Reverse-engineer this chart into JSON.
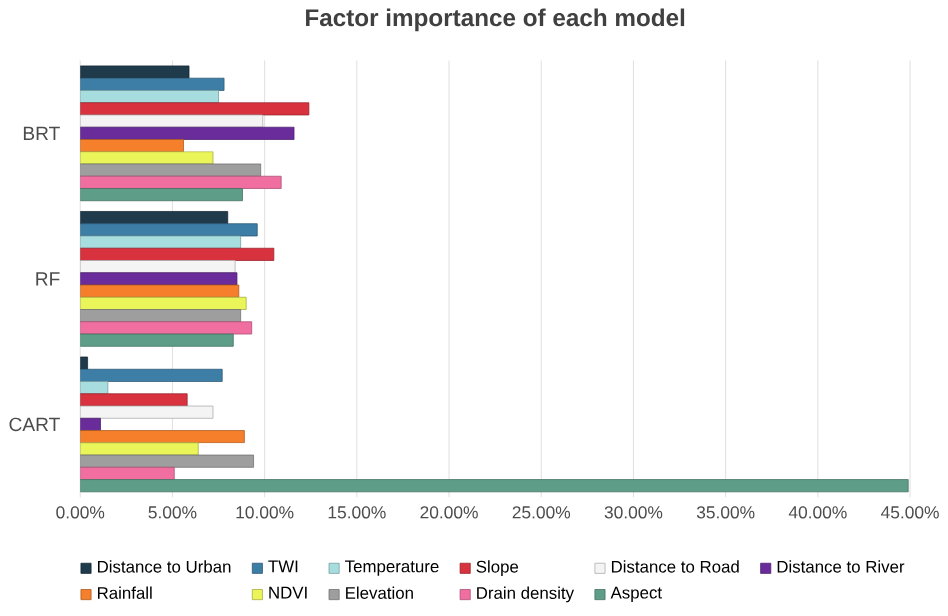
{
  "chart_data": {
    "type": "bar",
    "orientation": "horizontal",
    "title": "Factor importance of each model",
    "categories": [
      "BRT",
      "RF",
      "CART"
    ],
    "series": [
      {
        "name": "Distance to Urban",
        "color": "#1f3a4a",
        "values": [
          5.9,
          8.0,
          0.4
        ]
      },
      {
        "name": "TWI",
        "color": "#3d7ea6",
        "values": [
          7.8,
          9.6,
          7.7
        ]
      },
      {
        "name": "Temperature",
        "color": "#a8dde0",
        "values": [
          7.5,
          8.7,
          1.5
        ]
      },
      {
        "name": "Slope",
        "color": "#d9323f",
        "values": [
          12.4,
          10.5,
          5.8
        ]
      },
      {
        "name": "Distance to Road",
        "color": "#f4f4f4",
        "values": [
          9.9,
          8.4,
          7.2
        ]
      },
      {
        "name": "Distance to River",
        "color": "#6a2c9a",
        "values": [
          11.6,
          8.5,
          1.1
        ]
      },
      {
        "name": "Rainfall",
        "color": "#f57f2a",
        "values": [
          5.6,
          8.6,
          8.9
        ]
      },
      {
        "name": "NDVI",
        "color": "#eaf55a",
        "values": [
          7.2,
          9.0,
          6.4
        ]
      },
      {
        "name": "Elevation",
        "color": "#9e9e9e",
        "values": [
          9.8,
          8.7,
          9.4
        ]
      },
      {
        "name": "Drain density",
        "color": "#f06fa0",
        "values": [
          10.9,
          9.3,
          5.1
        ]
      },
      {
        "name": "Aspect",
        "color": "#5e9e88",
        "values": [
          8.8,
          8.3,
          44.9
        ]
      }
    ],
    "xlim": [
      0,
      45
    ],
    "xticks": [
      {
        "value": 0,
        "label": "0.00%"
      },
      {
        "value": 5,
        "label": "5.00%"
      },
      {
        "value": 10,
        "label": "10.00%"
      },
      {
        "value": 15,
        "label": "15.00%"
      },
      {
        "value": 20,
        "label": "20.00%"
      },
      {
        "value": 25,
        "label": "25.00%"
      },
      {
        "value": 30,
        "label": "30.00%"
      },
      {
        "value": 35,
        "label": "35.00%"
      },
      {
        "value": 40,
        "label": "40.00%"
      },
      {
        "value": 45,
        "label": "45.00%"
      }
    ],
    "grid": "x",
    "legend": "bottom"
  }
}
